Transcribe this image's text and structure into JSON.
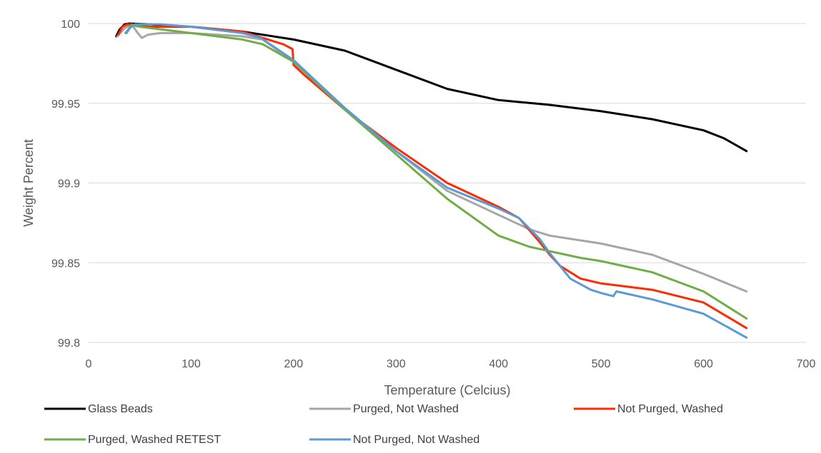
{
  "chart_data": {
    "type": "line",
    "xlabel": "Temperature (Celcius)",
    "ylabel": "Weight Percent",
    "xlim": [
      0,
      700
    ],
    "ylim": [
      99.8,
      100
    ],
    "x_ticks": [
      "0",
      "100",
      "200",
      "300",
      "400",
      "500",
      "600",
      "700"
    ],
    "y_ticks": [
      "99.8",
      "99.85",
      "99.9",
      "99.95",
      "100"
    ],
    "x_tick_values": [
      0,
      100,
      200,
      300,
      400,
      500,
      600,
      700
    ],
    "y_tick_values": [
      99.8,
      99.85,
      99.9,
      99.95,
      100
    ],
    "grid": "horizontal",
    "legend_position": "bottom",
    "series": [
      {
        "name": "Glass Beads",
        "color": "#000000",
        "points": [
          [
            27,
            99.992
          ],
          [
            30,
            99.996
          ],
          [
            35,
            99.9995
          ],
          [
            40,
            100.0
          ],
          [
            60,
            99.9995
          ],
          [
            100,
            99.998
          ],
          [
            150,
            99.995
          ],
          [
            200,
            99.99
          ],
          [
            250,
            99.983
          ],
          [
            300,
            99.971
          ],
          [
            350,
            99.959
          ],
          [
            400,
            99.952
          ],
          [
            450,
            99.949
          ],
          [
            500,
            99.945
          ],
          [
            550,
            99.94
          ],
          [
            600,
            99.933
          ],
          [
            620,
            99.928
          ],
          [
            642,
            99.92
          ]
        ]
      },
      {
        "name": "Purged, Not Washed",
        "color": "#a6a6a6",
        "points": [
          [
            28,
            99.992
          ],
          [
            35,
            99.997
          ],
          [
            42,
            99.9995
          ],
          [
            48,
            99.994
          ],
          [
            52,
            99.991
          ],
          [
            58,
            99.993
          ],
          [
            70,
            99.994
          ],
          [
            100,
            99.994
          ],
          [
            150,
            99.992
          ],
          [
            170,
            99.99
          ],
          [
            200,
            99.976
          ],
          [
            250,
            99.947
          ],
          [
            300,
            99.92
          ],
          [
            350,
            99.895
          ],
          [
            400,
            99.88
          ],
          [
            430,
            99.871
          ],
          [
            450,
            99.867
          ],
          [
            500,
            99.862
          ],
          [
            550,
            99.855
          ],
          [
            600,
            99.843
          ],
          [
            642,
            99.832
          ]
        ]
      },
      {
        "name": "Not Purged, Washed",
        "color": "#ff2a00",
        "points": [
          [
            29,
            99.993
          ],
          [
            33,
            99.998
          ],
          [
            38,
            99.9995
          ],
          [
            60,
            99.998
          ],
          [
            100,
            99.998
          ],
          [
            150,
            99.995
          ],
          [
            190,
            99.987
          ],
          [
            199,
            99.984
          ],
          [
            200,
            99.974
          ],
          [
            210,
            99.968
          ],
          [
            250,
            99.946
          ],
          [
            300,
            99.922
          ],
          [
            350,
            99.9
          ],
          [
            400,
            99.885
          ],
          [
            420,
            99.878
          ],
          [
            440,
            99.863
          ],
          [
            450,
            99.855
          ],
          [
            460,
            99.848
          ],
          [
            480,
            99.84
          ],
          [
            500,
            99.837
          ],
          [
            550,
            99.833
          ],
          [
            600,
            99.825
          ],
          [
            642,
            99.809
          ]
        ]
      },
      {
        "name": "Purged, Washed RETEST",
        "color": "#70ad47",
        "points": [
          [
            36,
            99.994
          ],
          [
            42,
            99.999
          ],
          [
            50,
            99.998
          ],
          [
            100,
            99.994
          ],
          [
            150,
            99.99
          ],
          [
            170,
            99.987
          ],
          [
            200,
            99.976
          ],
          [
            250,
            99.946
          ],
          [
            300,
            99.918
          ],
          [
            350,
            99.89
          ],
          [
            400,
            99.867
          ],
          [
            430,
            99.86
          ],
          [
            480,
            99.853
          ],
          [
            500,
            99.851
          ],
          [
            550,
            99.844
          ],
          [
            600,
            99.832
          ],
          [
            642,
            99.815
          ]
        ]
      },
      {
        "name": "Not Purged, Not Washed",
        "color": "#5b9bd5",
        "points": [
          [
            37,
            99.994
          ],
          [
            40,
            99.997
          ],
          [
            45,
            99.9995
          ],
          [
            70,
            99.9995
          ],
          [
            100,
            99.998
          ],
          [
            150,
            99.994
          ],
          [
            168,
            99.991
          ],
          [
            200,
            99.977
          ],
          [
            250,
            99.947
          ],
          [
            300,
            99.92
          ],
          [
            350,
            99.897
          ],
          [
            400,
            99.884
          ],
          [
            420,
            99.878
          ],
          [
            440,
            99.865
          ],
          [
            450,
            99.856
          ],
          [
            470,
            99.84
          ],
          [
            490,
            99.833
          ],
          [
            500,
            99.831
          ],
          [
            512,
            99.829
          ],
          [
            515,
            99.832
          ],
          [
            550,
            99.827
          ],
          [
            600,
            99.818
          ],
          [
            642,
            99.803
          ]
        ]
      }
    ]
  }
}
